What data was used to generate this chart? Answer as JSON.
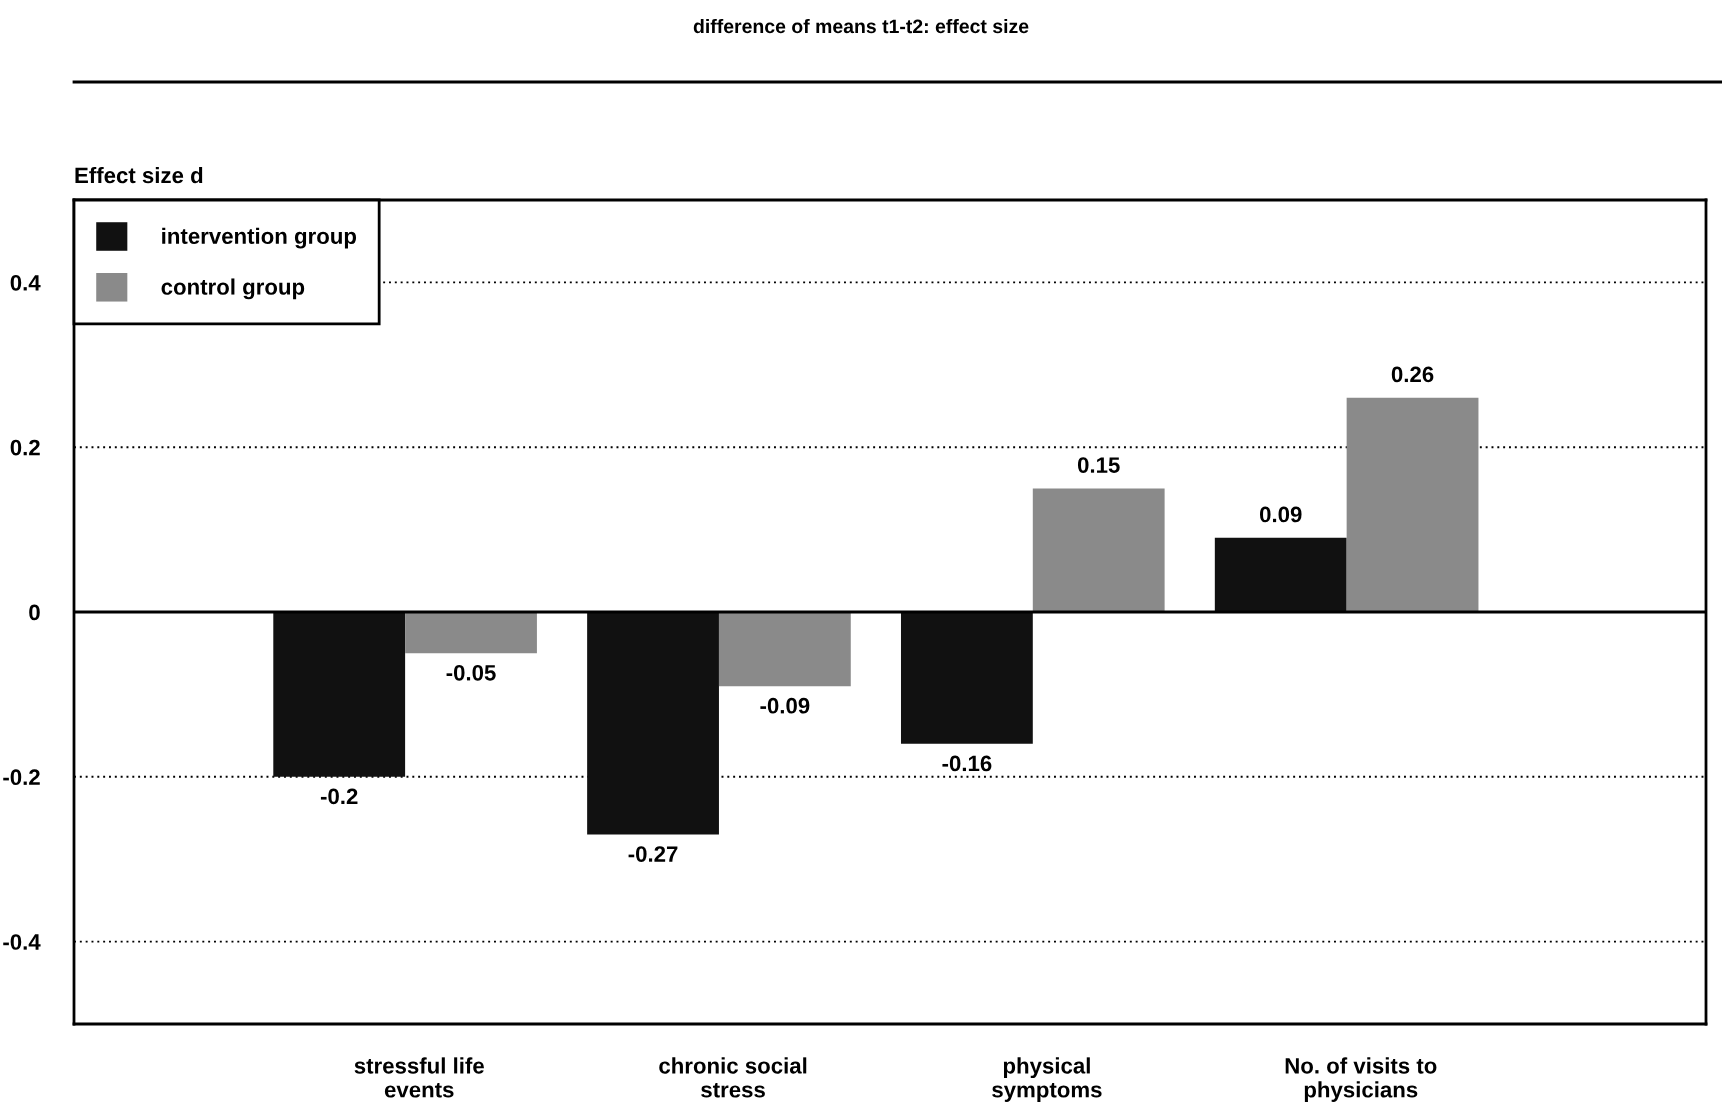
{
  "chart_data": {
    "type": "bar",
    "title": "difference of means t1-t2: effect size",
    "ylabel": "Effect size d",
    "categories": [
      "stressful life\nevents",
      "chronic social\nstress",
      "physical\nsymptoms",
      "No. of visits to\nphysicians"
    ],
    "series": [
      {
        "name": "intervention group",
        "color": "#111111",
        "values": [
          -0.2,
          -0.27,
          -0.16,
          0.09
        ]
      },
      {
        "name": "control group",
        "color": "#8a8a8a",
        "values": [
          -0.05,
          -0.09,
          0.15,
          0.26
        ]
      }
    ],
    "ylim": [
      -0.5,
      0.5
    ],
    "yticks": [
      -0.4,
      -0.2,
      0,
      0.2,
      0.4
    ],
    "grid": "y",
    "legend": "top left",
    "data_labels": true
  }
}
